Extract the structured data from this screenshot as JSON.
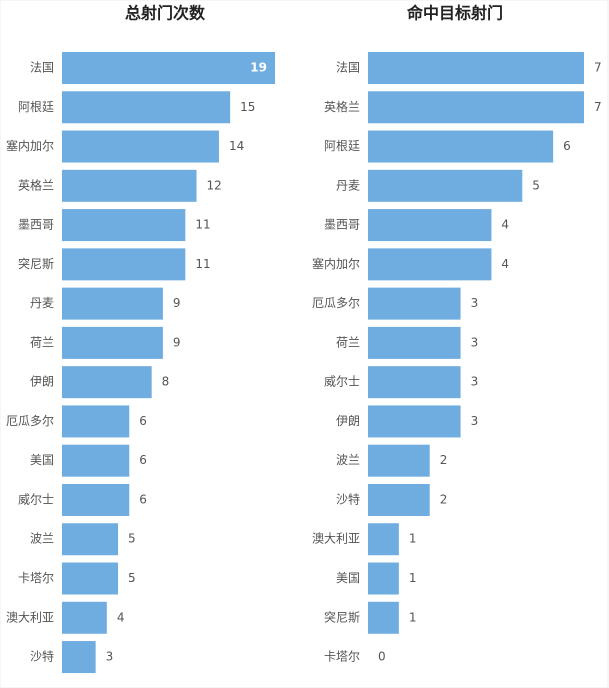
{
  "chart_data": [
    {
      "type": "bar",
      "orientation": "horizontal",
      "title": "总射门次数",
      "color": "#6fade0",
      "categories": [
        "法国",
        "阿根廷",
        "塞内加尔",
        "英格兰",
        "墨西哥",
        "突尼斯",
        "丹麦",
        "荷兰",
        "伊朗",
        "厄瓜多尔",
        "美国",
        "威尔士",
        "波兰",
        "卡塔尔",
        "澳大利亚",
        "沙特"
      ],
      "values": [
        19,
        15,
        14,
        12,
        11,
        11,
        9,
        9,
        8,
        6,
        6,
        6,
        5,
        5,
        4,
        3
      ]
    },
    {
      "type": "bar",
      "orientation": "horizontal",
      "title": "命中目标射门",
      "color": "#6fade0",
      "categories": [
        "法国",
        "英格兰",
        "阿根廷",
        "丹麦",
        "墨西哥",
        "塞内加尔",
        "厄瓜多尔",
        "荷兰",
        "威尔士",
        "伊朗",
        "波兰",
        "沙特",
        "澳大利亚",
        "美国",
        "突尼斯",
        "卡塔尔"
      ],
      "values": [
        7,
        7,
        6,
        5,
        4,
        4,
        3,
        3,
        3,
        3,
        2,
        2,
        1,
        1,
        1,
        0
      ]
    }
  ]
}
